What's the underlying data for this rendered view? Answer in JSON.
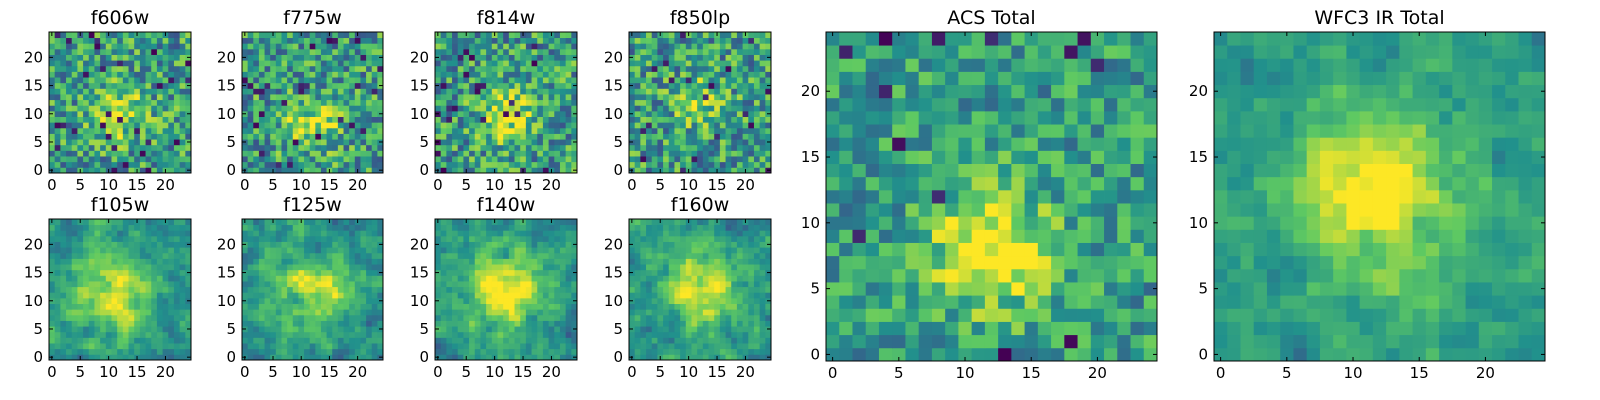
{
  "figure": {
    "colormap": [
      "#440154",
      "#3b528b",
      "#21918c",
      "#5ec962",
      "#fde725"
    ],
    "colormap_name": "viridis"
  },
  "chart_data": [
    {
      "type": "heatmap",
      "title": "f606w",
      "grid": [
        25,
        25
      ],
      "xlim": [
        0,
        24
      ],
      "ylim": [
        0,
        24
      ],
      "xticks": [
        "0",
        "5",
        "10",
        "15",
        "20"
      ],
      "yticks": [
        "0",
        "5",
        "10",
        "15",
        "20"
      ],
      "peak": {
        "x": 12,
        "y": 10
      },
      "peak_strength": 0.35,
      "seed": 11
    },
    {
      "type": "heatmap",
      "title": "f775w",
      "grid": [
        25,
        25
      ],
      "xlim": [
        0,
        24
      ],
      "ylim": [
        0,
        24
      ],
      "xticks": [
        "0",
        "5",
        "10",
        "15",
        "20"
      ],
      "yticks": [
        "0",
        "5",
        "10",
        "15",
        "20"
      ],
      "peak": {
        "x": 12,
        "y": 8
      },
      "peak_strength": 0.35,
      "seed": 23
    },
    {
      "type": "heatmap",
      "title": "f814w",
      "grid": [
        25,
        25
      ],
      "xlim": [
        0,
        24
      ],
      "ylim": [
        0,
        24
      ],
      "xticks": [
        "0",
        "5",
        "10",
        "15",
        "20"
      ],
      "yticks": [
        "0",
        "5",
        "10",
        "15",
        "20"
      ],
      "peak": {
        "x": 12,
        "y": 10
      },
      "peak_strength": 0.4,
      "seed": 37
    },
    {
      "type": "heatmap",
      "title": "f850lp",
      "grid": [
        25,
        25
      ],
      "xlim": [
        0,
        24
      ],
      "ylim": [
        0,
        24
      ],
      "xticks": [
        "0",
        "5",
        "10",
        "15",
        "20"
      ],
      "yticks": [
        "0",
        "5",
        "10",
        "15",
        "20"
      ],
      "peak": {
        "x": 12,
        "y": 12
      },
      "peak_strength": 0.25,
      "seed": 41
    },
    {
      "type": "heatmap",
      "title": "f105w",
      "grid": [
        25,
        25
      ],
      "xlim": [
        0,
        24
      ],
      "ylim": [
        0,
        24
      ],
      "xticks": [
        "0",
        "5",
        "10",
        "15",
        "20"
      ],
      "yticks": [
        "0",
        "5",
        "10",
        "15",
        "20"
      ],
      "peak": {
        "x": 11,
        "y": 11
      },
      "peak_strength": 0.45,
      "seed": 53
    },
    {
      "type": "heatmap",
      "title": "f125w",
      "grid": [
        25,
        25
      ],
      "xlim": [
        0,
        24
      ],
      "ylim": [
        0,
        24
      ],
      "xticks": [
        "0",
        "5",
        "10",
        "15",
        "20"
      ],
      "yticks": [
        "0",
        "5",
        "10",
        "15",
        "20"
      ],
      "peak": {
        "x": 12,
        "y": 12
      },
      "peak_strength": 0.4,
      "seed": 67
    },
    {
      "type": "heatmap",
      "title": "f140w",
      "grid": [
        25,
        25
      ],
      "xlim": [
        0,
        24
      ],
      "ylim": [
        0,
        24
      ],
      "xticks": [
        "0",
        "5",
        "10",
        "15",
        "20"
      ],
      "yticks": [
        "0",
        "5",
        "10",
        "15",
        "20"
      ],
      "peak": {
        "x": 12,
        "y": 12
      },
      "peak_strength": 0.5,
      "seed": 79
    },
    {
      "type": "heatmap",
      "title": "f160w",
      "grid": [
        25,
        25
      ],
      "xlim": [
        0,
        24
      ],
      "ylim": [
        0,
        24
      ],
      "xticks": [
        "0",
        "5",
        "10",
        "15",
        "20"
      ],
      "yticks": [
        "0",
        "5",
        "10",
        "15",
        "20"
      ],
      "peak": {
        "x": 12,
        "y": 12
      },
      "peak_strength": 0.45,
      "seed": 83
    },
    {
      "type": "heatmap",
      "title": "ACS Total",
      "grid": [
        25,
        25
      ],
      "xlim": [
        0,
        24
      ],
      "ylim": [
        0,
        24
      ],
      "xticks": [
        "0",
        "5",
        "10",
        "15",
        "20"
      ],
      "yticks": [
        "0",
        "5",
        "10",
        "15",
        "20"
      ],
      "peak": {
        "x": 12,
        "y": 8
      },
      "peak_strength": 0.5,
      "seed": 97
    },
    {
      "type": "heatmap",
      "title": "WFC3 IR Total",
      "grid": [
        25,
        25
      ],
      "xlim": [
        0,
        24
      ],
      "ylim": [
        0,
        24
      ],
      "xticks": [
        "0",
        "5",
        "10",
        "15",
        "20"
      ],
      "yticks": [
        "0",
        "5",
        "10",
        "15",
        "20"
      ],
      "peak": {
        "x": 12,
        "y": 12
      },
      "peak_strength": 0.55,
      "seed": 101
    }
  ]
}
